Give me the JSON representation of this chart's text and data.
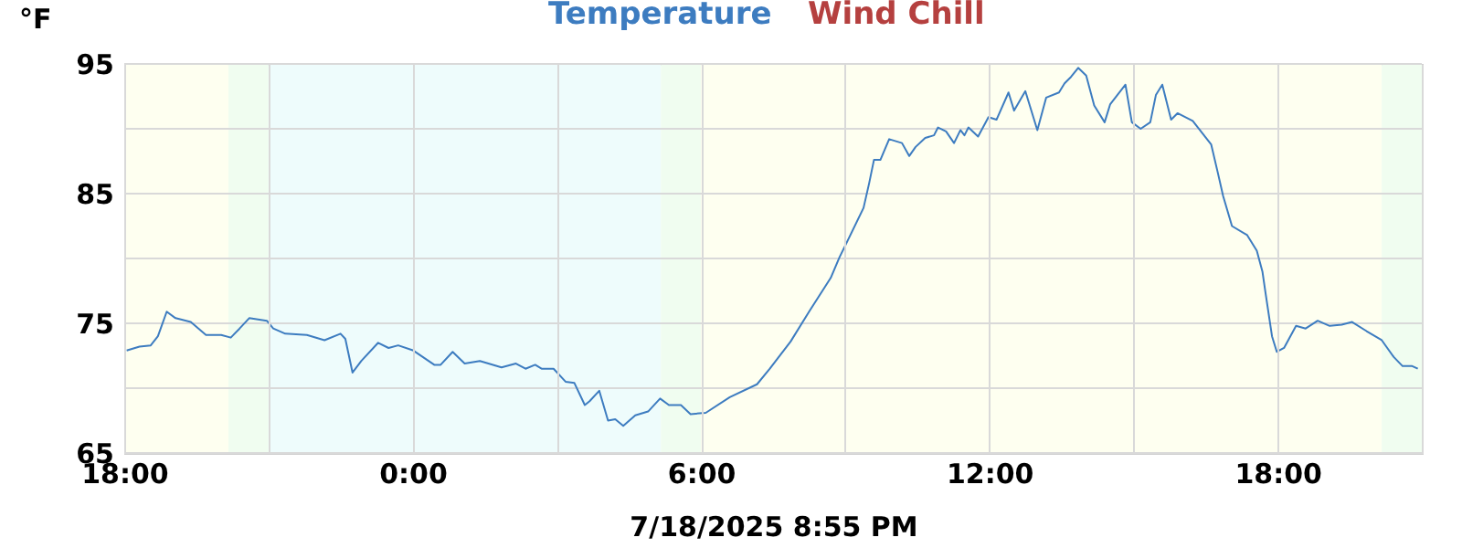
{
  "chart_data": {
    "type": "line",
    "ylabel": "°F",
    "xlabel": "7/18/2025 8:55 PM",
    "legend": "top",
    "grid": true,
    "x": [
      "2025-07-17T18:03",
      "2025-07-17T18:19",
      "2025-07-17T18:33",
      "2025-07-17T18:42",
      "2025-07-17T18:53",
      "2025-07-17T19:04",
      "2025-07-17T19:23",
      "2025-07-17T19:42",
      "2025-07-17T20:01",
      "2025-07-17T20:13",
      "2025-07-17T20:24",
      "2025-07-17T20:36",
      "2025-07-17T20:58",
      "2025-07-17T21:06",
      "2025-07-17T21:21",
      "2025-07-17T21:48",
      "2025-07-17T22:10",
      "2025-07-17T22:30",
      "2025-07-17T22:36",
      "2025-07-17T22:45",
      "2025-07-17T22:56",
      "2025-07-17T23:17",
      "2025-07-17T23:30",
      "2025-07-17T23:42",
      "2025-07-18T00:01",
      "2025-07-18T00:27",
      "2025-07-18T00:35",
      "2025-07-18T00:50",
      "2025-07-18T01:05",
      "2025-07-18T01:24",
      "2025-07-18T01:51",
      "2025-07-18T02:09",
      "2025-07-18T02:21",
      "2025-07-18T02:33",
      "2025-07-18T02:41",
      "2025-07-18T02:56",
      "2025-07-18T03:11",
      "2025-07-18T03:22",
      "2025-07-18T03:35",
      "2025-07-18T03:41",
      "2025-07-18T03:53",
      "2025-07-18T04:04",
      "2025-07-18T04:13",
      "2025-07-18T04:23",
      "2025-07-18T04:38",
      "2025-07-18T04:54",
      "2025-07-18T05:09",
      "2025-07-18T05:20",
      "2025-07-18T05:35",
      "2025-07-18T05:47",
      "2025-07-18T06:06",
      "2025-07-18T06:36",
      "2025-07-18T07:10",
      "2025-07-18T07:26",
      "2025-07-18T07:52",
      "2025-07-18T08:15",
      "2025-07-18T08:42",
      "2025-07-18T08:53",
      "2025-07-18T09:01",
      "2025-07-18T09:23",
      "2025-07-18T09:30",
      "2025-07-18T09:36",
      "2025-07-18T09:44",
      "2025-07-18T09:55",
      "2025-07-18T10:11",
      "2025-07-18T10:20",
      "2025-07-18T10:28",
      "2025-07-18T10:40",
      "2025-07-18T10:51",
      "2025-07-18T10:56",
      "2025-07-18T11:06",
      "2025-07-18T11:16",
      "2025-07-18T11:24",
      "2025-07-18T11:29",
      "2025-07-18T11:34",
      "2025-07-18T11:46",
      "2025-07-18T11:59",
      "2025-07-18T12:09",
      "2025-07-18T12:24",
      "2025-07-18T12:31",
      "2025-07-18T12:45",
      "2025-07-18T13:00",
      "2025-07-18T13:11",
      "2025-07-18T13:27",
      "2025-07-18T13:34",
      "2025-07-18T13:42",
      "2025-07-18T13:51",
      "2025-07-18T14:01",
      "2025-07-18T14:11",
      "2025-07-18T14:24",
      "2025-07-18T14:31",
      "2025-07-18T14:50",
      "2025-07-18T14:58",
      "2025-07-18T15:09",
      "2025-07-18T15:21",
      "2025-07-18T15:28",
      "2025-07-18T15:36",
      "2025-07-18T15:47",
      "2025-07-18T15:55",
      "2025-07-18T16:14",
      "2025-07-18T16:37",
      "2025-07-18T16:45",
      "2025-07-18T16:52",
      "2025-07-18T17:03",
      "2025-07-18T17:22",
      "2025-07-18T17:34",
      "2025-07-18T17:41",
      "2025-07-18T17:45",
      "2025-07-18T17:53",
      "2025-07-18T17:59",
      "2025-07-18T18:08",
      "2025-07-18T18:23",
      "2025-07-18T18:35",
      "2025-07-18T18:50",
      "2025-07-18T19:05",
      "2025-07-18T19:20",
      "2025-07-18T19:33",
      "2025-07-18T19:51",
      "2025-07-18T20:10",
      "2025-07-18T20:25",
      "2025-07-18T20:36",
      "2025-07-18T20:48",
      "2025-07-18T20:55"
    ],
    "series": [
      {
        "name": "Temperature",
        "color": "#3d7cc0",
        "values": [
          72.9,
          73.2,
          73.3,
          74.0,
          75.9,
          75.4,
          75.1,
          74.1,
          74.1,
          73.9,
          74.6,
          75.4,
          75.2,
          74.6,
          74.2,
          74.1,
          73.7,
          74.2,
          73.8,
          71.2,
          72.1,
          73.5,
          73.1,
          73.3,
          72.9,
          71.8,
          71.8,
          72.8,
          71.9,
          72.1,
          71.6,
          71.9,
          71.5,
          71.8,
          71.5,
          71.5,
          70.5,
          70.4,
          68.7,
          69.0,
          69.8,
          67.5,
          67.6,
          67.1,
          67.9,
          68.2,
          69.2,
          68.7,
          68.7,
          68.0,
          68.1,
          69.3,
          70.3,
          71.5,
          73.6,
          75.9,
          78.5,
          80.1,
          81.1,
          83.9,
          85.8,
          87.6,
          87.6,
          89.2,
          88.9,
          87.9,
          88.6,
          89.3,
          89.5,
          90.1,
          89.8,
          88.9,
          89.9,
          89.5,
          90.1,
          89.4,
          90.9,
          90.7,
          92.8,
          91.4,
          92.9,
          89.9,
          92.4,
          92.8,
          93.5,
          94.0,
          94.7,
          94.1,
          91.8,
          90.5,
          91.9,
          93.4,
          90.5,
          90.0,
          90.5,
          92.6,
          93.4,
          90.7,
          91.2,
          90.6,
          88.8,
          86.7,
          84.8,
          82.5,
          81.8,
          80.6,
          79.0,
          77.3,
          74.0,
          72.8,
          73.1,
          74.8,
          74.6,
          75.2,
          74.8,
          74.9,
          75.1,
          74.4,
          73.7,
          72.4,
          71.7,
          71.7,
          71.5
        ]
      },
      {
        "name": "Wind Chill",
        "color": "#b5403f",
        "values": [
          null,
          null,
          null,
          null,
          null,
          null,
          null,
          null,
          null,
          null,
          null,
          null,
          null,
          null,
          null,
          null,
          null,
          null,
          null,
          null,
          null,
          null,
          null,
          null,
          null,
          null,
          null,
          null,
          null,
          null,
          null,
          null,
          null,
          null,
          null,
          null,
          null,
          null,
          null,
          null,
          null,
          null,
          null,
          null,
          null,
          null,
          null,
          null,
          null,
          null,
          null,
          null,
          null,
          null,
          null,
          null,
          null,
          null,
          null,
          null,
          null,
          null,
          null,
          null,
          null,
          null,
          null,
          null,
          null,
          null,
          null,
          null,
          null,
          null,
          null,
          null,
          null,
          null,
          null,
          null,
          null,
          null,
          null,
          null,
          null,
          null,
          null,
          null,
          null,
          null,
          null,
          null,
          null,
          null,
          null,
          null,
          null,
          null,
          null,
          null,
          null,
          null,
          null,
          null,
          null,
          null,
          null,
          null,
          null,
          null,
          null,
          null,
          null,
          null,
          null,
          null,
          null,
          null,
          null,
          null,
          null,
          null,
          null
        ]
      }
    ],
    "xlim": [
      "2025-07-17T18:00",
      "2025-07-18T21:00"
    ],
    "xticks": [
      {
        "value": "2025-07-17T18:00",
        "label": "18:00"
      },
      {
        "value": "2025-07-17T21:00",
        "label": null
      },
      {
        "value": "2025-07-18T00:00",
        "label": "0:00"
      },
      {
        "value": "2025-07-18T03:00",
        "label": null
      },
      {
        "value": "2025-07-18T06:00",
        "label": "6:00"
      },
      {
        "value": "2025-07-18T09:00",
        "label": null
      },
      {
        "value": "2025-07-18T12:00",
        "label": "12:00"
      },
      {
        "value": "2025-07-18T15:00",
        "label": null
      },
      {
        "value": "2025-07-18T18:00",
        "label": "18:00"
      },
      {
        "value": "2025-07-18T21:00",
        "label": null
      }
    ],
    "ylim": [
      65,
      95
    ],
    "yticks": [
      65,
      {
        "value": 70,
        "label": null
      },
      75,
      {
        "value": 80,
        "label": null
      },
      85,
      {
        "value": 90,
        "label": null
      },
      95
    ],
    "bands": [
      {
        "axis": "x",
        "from": "2025-07-17T18:00",
        "to": "2025-07-17T20:10",
        "color": "#fefff0"
      },
      {
        "axis": "x",
        "from": "2025-07-17T20:10",
        "to": "2025-07-17T21:00",
        "color": "#f0fdf0"
      },
      {
        "axis": "x",
        "from": "2025-07-17T21:00",
        "to": "2025-07-18T05:10",
        "color": "#eefcfc"
      },
      {
        "axis": "x",
        "from": "2025-07-18T05:10",
        "to": "2025-07-18T06:00",
        "color": "#f0fdf0"
      },
      {
        "axis": "x",
        "from": "2025-07-18T06:00",
        "to": "2025-07-18T20:10",
        "color": "#fefff0"
      },
      {
        "axis": "x",
        "from": "2025-07-18T20:10",
        "to": "2025-07-18T21:00",
        "color": "#f0fdf0"
      }
    ]
  }
}
